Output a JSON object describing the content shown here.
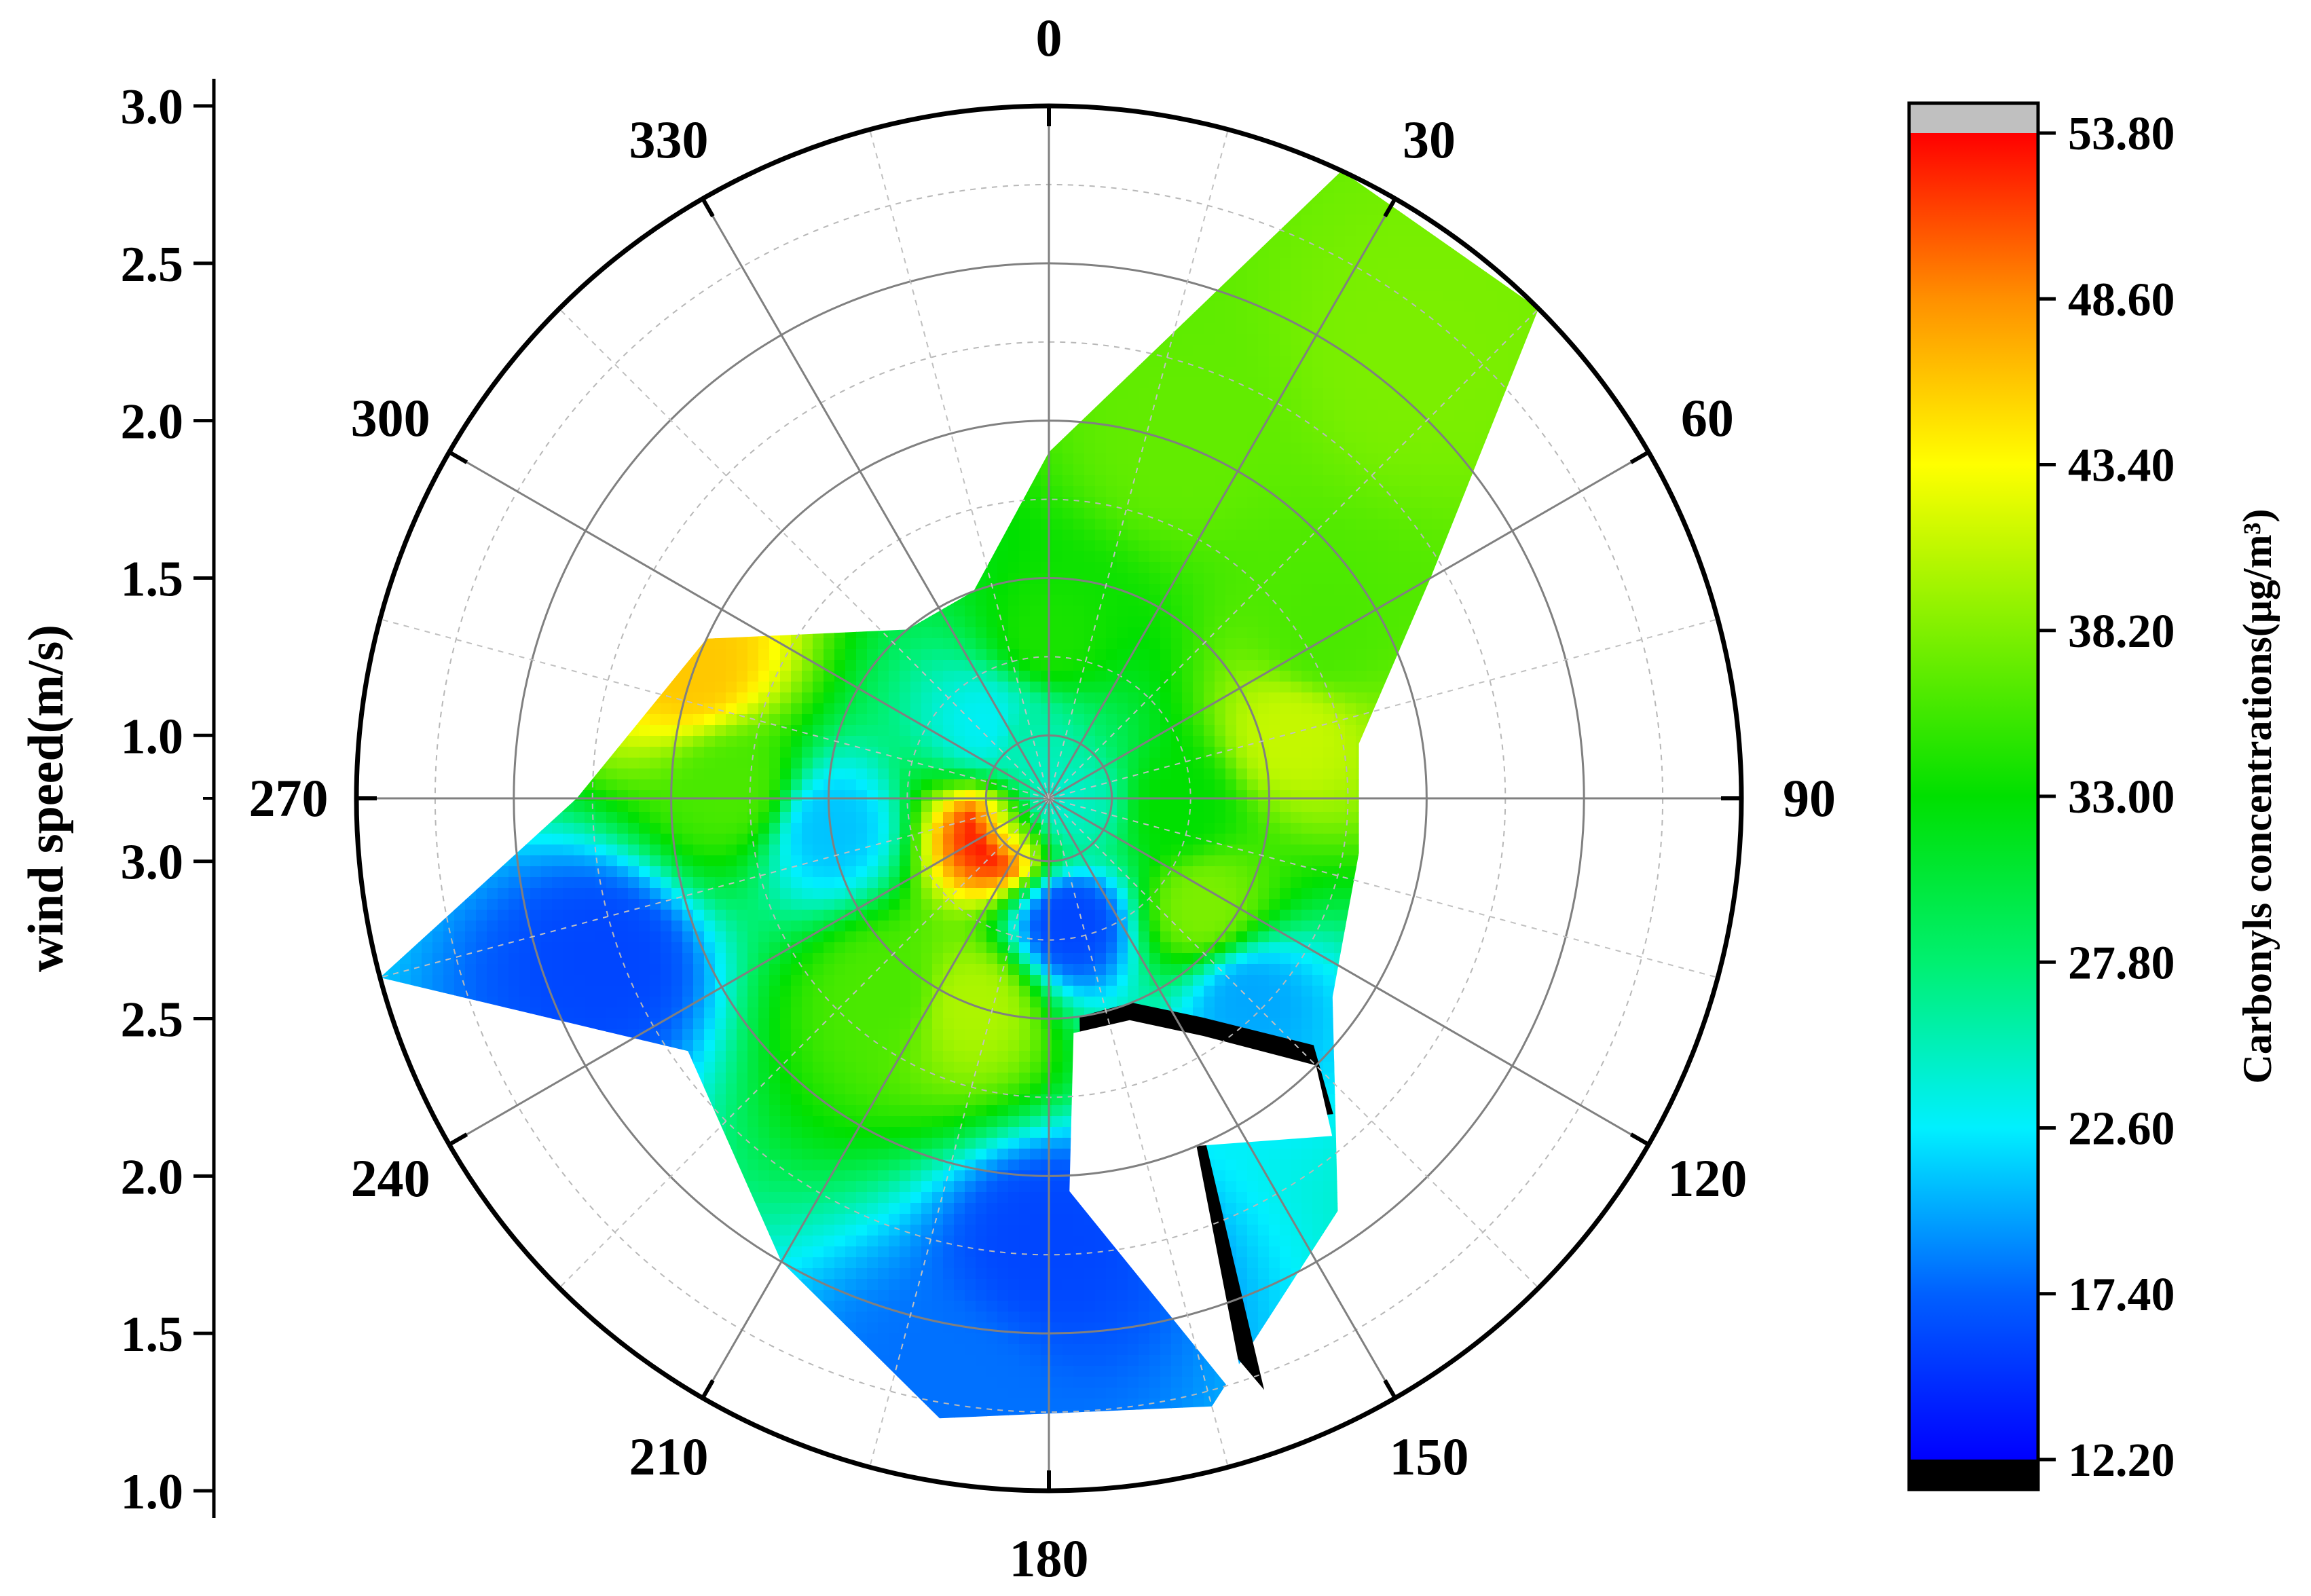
{
  "chart_data": {
    "type": "polar-contour",
    "ylabel": "wind speed(m/s)",
    "colorbar_label": "Carbonyls concentrations(μg/m³)",
    "angle_ticks": [
      "0",
      "30",
      "60",
      "90",
      "120",
      "150",
      "180",
      "210",
      "240",
      "270",
      "300",
      "330"
    ],
    "angle_tick_values": [
      0,
      30,
      60,
      90,
      120,
      150,
      180,
      210,
      240,
      270,
      300,
      330
    ],
    "speed_range": [
      0.8,
      3.0
    ],
    "speed_ticks_upper": [
      "3.0",
      "2.5",
      "2.0",
      "1.5",
      "1.0"
    ],
    "speed_ticks_lower": [
      "1.0",
      "1.5",
      "2.0",
      "2.5",
      "3.0"
    ],
    "speed_tick_values": [
      3.0,
      2.5,
      2.0,
      1.5,
      1.0
    ],
    "colorbar_ticks": [
      "53.80",
      "48.60",
      "43.40",
      "38.20",
      "33.00",
      "27.80",
      "22.60",
      "17.40",
      "12.20"
    ],
    "colorbar_range": [
      12.2,
      53.8
    ],
    "colorbar_stops": [
      {
        "v": 12.2,
        "c": "#0000ff"
      },
      {
        "v": 17.4,
        "c": "#0060ff"
      },
      {
        "v": 22.6,
        "c": "#00f0ff"
      },
      {
        "v": 27.8,
        "c": "#00f070"
      },
      {
        "v": 33.0,
        "c": "#00e000"
      },
      {
        "v": 38.2,
        "c": "#80f000"
      },
      {
        "v": 43.4,
        "c": "#ffff00"
      },
      {
        "v": 48.6,
        "c": "#ff9000"
      },
      {
        "v": 53.8,
        "c": "#ff0000"
      }
    ],
    "above_range_color": "#c0c0c0",
    "below_range_color": "#000000",
    "grid": true,
    "data_region_boundary": [
      {
        "dir": 0,
        "speed": 1.9
      },
      {
        "dir": 25,
        "speed": 3.0
      },
      {
        "dir": 45,
        "speed": 3.0
      },
      {
        "dir": 60,
        "speed": 2.2
      },
      {
        "dir": 80,
        "speed": 1.8
      },
      {
        "dir": 100,
        "speed": 1.8
      },
      {
        "dir": 125,
        "speed": 1.9
      },
      {
        "dir": 145,
        "speed": 2.4
      },
      {
        "dir": 165,
        "speed": 2.8
      },
      {
        "dir": 190,
        "speed": 2.8
      },
      {
        "dir": 210,
        "speed": 2.5
      },
      {
        "dir": 235,
        "speed": 2.2
      },
      {
        "dir": 255,
        "speed": 3.0
      },
      {
        "dir": 270,
        "speed": 2.3
      },
      {
        "dir": 295,
        "speed": 2.0
      },
      {
        "dir": 320,
        "speed": 1.5
      },
      {
        "dir": 340,
        "speed": 1.5
      }
    ],
    "field_samples": [
      {
        "dir": 0,
        "speed": 1.3,
        "value": 34
      },
      {
        "dir": 20,
        "speed": 2.0,
        "value": 37
      },
      {
        "dir": 40,
        "speed": 2.6,
        "value": 38
      },
      {
        "dir": 60,
        "speed": 1.8,
        "value": 36
      },
      {
        "dir": 75,
        "speed": 1.6,
        "value": 41
      },
      {
        "dir": 95,
        "speed": 1.2,
        "value": 33
      },
      {
        "dir": 105,
        "speed": 0.9,
        "value": 26
      },
      {
        "dir": 125,
        "speed": 1.4,
        "value": 38
      },
      {
        "dir": 135,
        "speed": 1.7,
        "value": 20
      },
      {
        "dir": 170,
        "speed": 1.2,
        "value": 16
      },
      {
        "dir": 180,
        "speed": 2.2,
        "value": 16
      },
      {
        "dir": 190,
        "speed": 2.7,
        "value": 18
      },
      {
        "dir": 200,
        "speed": 1.5,
        "value": 40
      },
      {
        "dir": 220,
        "speed": 1.6,
        "value": 36
      },
      {
        "dir": 235,
        "speed": 1.0,
        "value": 53
      },
      {
        "dir": 250,
        "speed": 2.3,
        "value": 16
      },
      {
        "dir": 262,
        "speed": 1.5,
        "value": 21
      },
      {
        "dir": 272,
        "speed": 1.8,
        "value": 36
      },
      {
        "dir": 290,
        "speed": 2.0,
        "value": 46
      },
      {
        "dir": 320,
        "speed": 1.1,
        "value": 23
      },
      {
        "dir": 340,
        "speed": 1.0,
        "value": 26
      }
    ],
    "below_range_zone": [
      {
        "dir": 172,
        "speed": 1.5
      },
      {
        "dir": 158,
        "speed": 1.5
      },
      {
        "dir": 145,
        "speed": 1.65
      },
      {
        "dir": 133,
        "speed": 1.95
      },
      {
        "dir": 138,
        "speed": 2.15
      },
      {
        "dir": 155,
        "speed": 1.95
      },
      {
        "dir": 160,
        "speed": 2.8
      },
      {
        "dir": 175,
        "speed": 2.0
      }
    ]
  }
}
